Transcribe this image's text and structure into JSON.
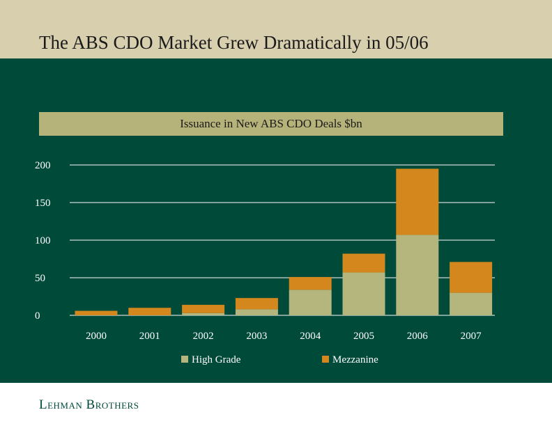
{
  "page": {
    "title": "The ABS CDO Market Grew Dramatically in 05/06",
    "footer_logo": "Lehman Brothers"
  },
  "colors": {
    "high_grade": "#b5b57e",
    "mezzanine": "#d4871c",
    "panel": "#004a3a",
    "title_bar": "#d8cfae"
  },
  "chart_data": {
    "type": "bar",
    "stacked": true,
    "title": "Issuance in New ABS CDO Deals $bn",
    "categories": [
      "2000",
      "2001",
      "2002",
      "2003",
      "2004",
      "2005",
      "2006",
      "2007"
    ],
    "series": [
      {
        "name": "High Grade",
        "values": [
          0,
          0,
          3,
          8,
          34,
          57,
          107,
          30
        ]
      },
      {
        "name": "Mezzanine",
        "values": [
          6,
          10,
          11,
          15,
          17,
          25,
          88,
          41
        ]
      }
    ],
    "yticks": [
      "0",
      "50",
      "100",
      "150",
      "200"
    ],
    "ylim": [
      0,
      200
    ],
    "grid": true,
    "legend": "bottom"
  }
}
